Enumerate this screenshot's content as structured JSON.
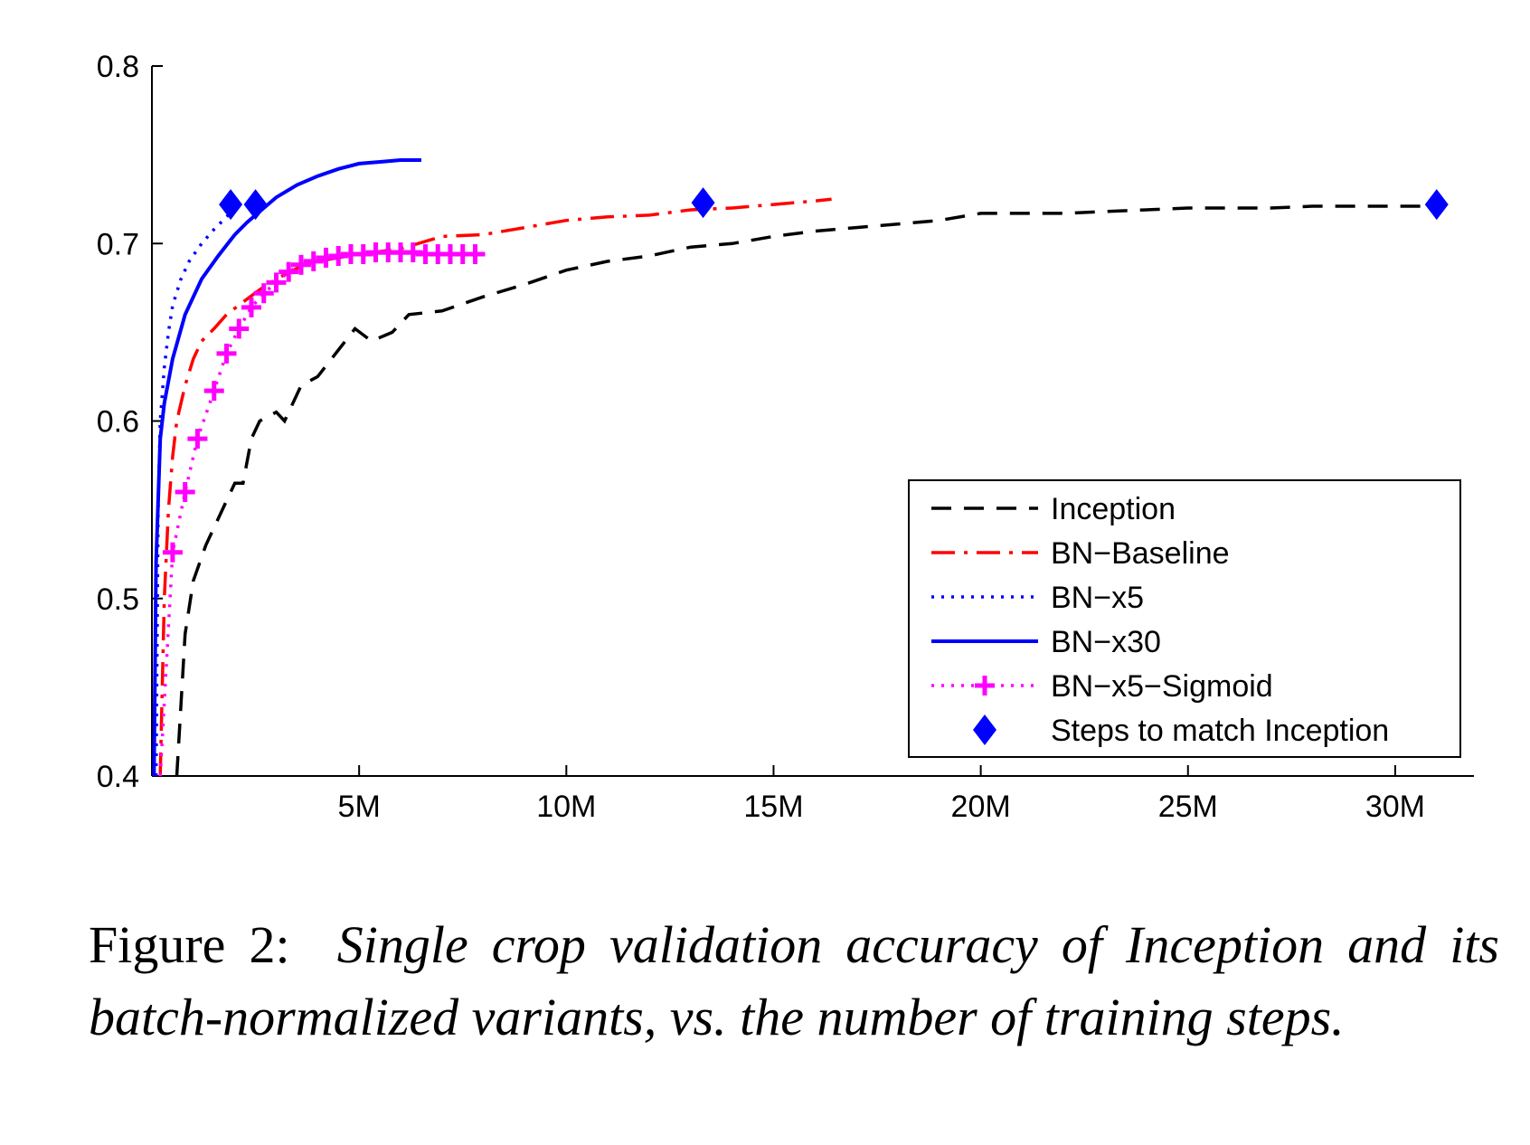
{
  "chart_data": {
    "type": "line",
    "xlim": [
      0,
      31.9
    ],
    "ylim": [
      0.4,
      0.8
    ],
    "xticks": [
      {
        "value": 5,
        "label": "5M"
      },
      {
        "value": 10,
        "label": "10M"
      },
      {
        "value": 15,
        "label": "15M"
      },
      {
        "value": 20,
        "label": "20M"
      },
      {
        "value": 25,
        "label": "25M"
      },
      {
        "value": 30,
        "label": "30M"
      }
    ],
    "yticks": [
      {
        "value": 0.4,
        "label": "0.4"
      },
      {
        "value": 0.5,
        "label": "0.5"
      },
      {
        "value": 0.6,
        "label": "0.6"
      },
      {
        "value": 0.7,
        "label": "0.7"
      },
      {
        "value": 0.8,
        "label": "0.8"
      }
    ],
    "legend_position": "lower-right",
    "series": [
      {
        "name": "Inception",
        "color": "#000000",
        "style": "dashed",
        "x": [
          0.6,
          0.7,
          0.8,
          1.0,
          1.3,
          1.7,
          2.0,
          2.2,
          2.4,
          2.6,
          3.0,
          3.2,
          3.6,
          4.0,
          4.5,
          4.9,
          5.3,
          5.8,
          6.2,
          7.0,
          8.0,
          9.0,
          10.0,
          11.0,
          12.0,
          13.0,
          14.0,
          15.0,
          16.0,
          17.0,
          18.0,
          19.0,
          20.0,
          21.0,
          22.0,
          23.0,
          24.0,
          25.0,
          26.0,
          27.0,
          28.0,
          29.0,
          30.0,
          31.0
        ],
        "y": [
          0.4,
          0.44,
          0.48,
          0.51,
          0.53,
          0.55,
          0.565,
          0.565,
          0.59,
          0.6,
          0.605,
          0.6,
          0.62,
          0.625,
          0.64,
          0.652,
          0.645,
          0.65,
          0.66,
          0.662,
          0.67,
          0.677,
          0.685,
          0.69,
          0.693,
          0.698,
          0.7,
          0.704,
          0.707,
          0.709,
          0.711,
          0.713,
          0.717,
          0.717,
          0.717,
          0.718,
          0.719,
          0.72,
          0.72,
          0.72,
          0.721,
          0.721,
          0.721,
          0.721
        ]
      },
      {
        "name": "BN−Baseline",
        "color": "#ff0000",
        "style": "dashdot",
        "x": [
          0.2,
          0.3,
          0.4,
          0.5,
          0.6,
          0.8,
          1.0,
          1.2,
          1.5,
          1.8,
          2.2,
          2.6,
          3.0,
          3.5,
          4.0,
          5.0,
          6.0,
          7.0,
          8.0,
          9.0,
          10.0,
          11.0,
          12.0,
          13.0,
          14.0,
          15.0,
          16.0,
          16.4
        ],
        "y": [
          0.4,
          0.5,
          0.55,
          0.58,
          0.6,
          0.62,
          0.635,
          0.645,
          0.652,
          0.66,
          0.667,
          0.674,
          0.68,
          0.686,
          0.69,
          0.694,
          0.697,
          0.704,
          0.705,
          0.709,
          0.713,
          0.715,
          0.716,
          0.719,
          0.72,
          0.722,
          0.724,
          0.725
        ]
      },
      {
        "name": "BN−x5",
        "color": "#0000ff",
        "style": "dotted",
        "x": [
          0.1,
          0.15,
          0.2,
          0.3,
          0.4,
          0.5,
          0.7,
          0.9,
          1.2,
          1.5,
          1.8,
          2.1
        ],
        "y": [
          0.4,
          0.55,
          0.6,
          0.63,
          0.65,
          0.665,
          0.68,
          0.69,
          0.7,
          0.708,
          0.715,
          0.722
        ]
      },
      {
        "name": "BN−x30",
        "color": "#0000ff",
        "style": "solid",
        "x": [
          0.05,
          0.1,
          0.2,
          0.3,
          0.5,
          0.8,
          1.2,
          1.6,
          2.0,
          2.3,
          2.7,
          3.0,
          3.5,
          4.0,
          4.5,
          5.0,
          5.5,
          6.0,
          6.5
        ],
        "y": [
          0.4,
          0.52,
          0.59,
          0.61,
          0.635,
          0.66,
          0.68,
          0.693,
          0.705,
          0.712,
          0.72,
          0.726,
          0.733,
          0.738,
          0.742,
          0.745,
          0.746,
          0.747,
          0.747
        ]
      },
      {
        "name": "BN−x5−Sigmoid",
        "color": "#ff00ff",
        "style": "dotted",
        "markers": "plus",
        "x": [
          0.2,
          0.5,
          0.8,
          1.1,
          1.5,
          1.8,
          2.1,
          2.4,
          2.7,
          3.0,
          3.3,
          3.6,
          3.9,
          4.2,
          4.5,
          4.8,
          5.1,
          5.4,
          5.7,
          6.0,
          6.3,
          6.6,
          6.9,
          7.2,
          7.5,
          7.8
        ],
        "y": [
          0.4,
          0.526,
          0.56,
          0.59,
          0.617,
          0.638,
          0.652,
          0.664,
          0.672,
          0.678,
          0.684,
          0.688,
          0.69,
          0.692,
          0.693,
          0.694,
          0.694,
          0.695,
          0.695,
          0.695,
          0.695,
          0.694,
          0.694,
          0.694,
          0.694,
          0.694
        ]
      },
      {
        "name": "Steps to match Inception",
        "color": "#0000ff",
        "style": "none",
        "markers": "diamond",
        "x": [
          1.9,
          2.5,
          13.3,
          31.0
        ],
        "y": [
          0.722,
          0.722,
          0.723,
          0.722
        ]
      }
    ]
  },
  "caption": {
    "lead": "Figure 2:",
    "body": "Single crop validation accuracy of Inception and its batch-normalized variants, vs.  the number of training steps."
  }
}
